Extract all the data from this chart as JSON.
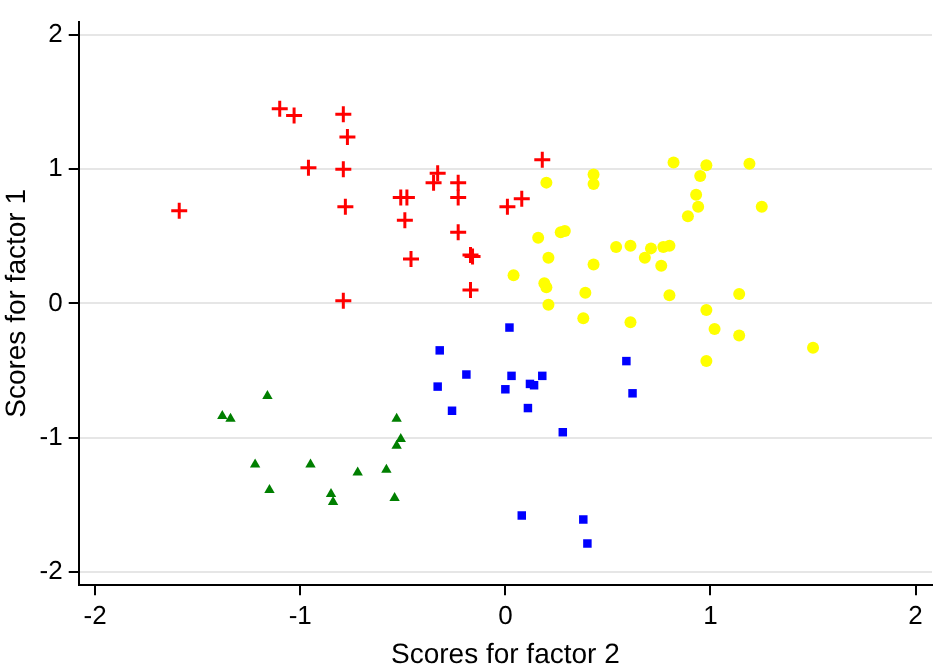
{
  "chart_data": {
    "type": "scatter",
    "xlabel": "Scores for factor 2",
    "ylabel": "Scores for factor 1",
    "xlim": [
      -2.08,
      2.08
    ],
    "ylim": [
      -2.1,
      2.1
    ],
    "xticks": [
      -2,
      -1,
      0,
      1,
      2
    ],
    "yticks": [
      -2,
      -1,
      0,
      1,
      2
    ],
    "grid": "y",
    "legend": false,
    "series": [
      {
        "color": "#ff0000",
        "marker": "cross",
        "x": [
          -1.1,
          -1.03,
          -0.79,
          -0.77,
          -0.96,
          -0.79,
          -0.78,
          -1.59,
          -0.79,
          -0.33,
          -0.35,
          -0.23,
          -0.51,
          -0.48,
          -0.23,
          -0.49,
          -0.23,
          -0.46,
          -0.17,
          -0.16,
          -0.17,
          0.18,
          0.08,
          0.01
        ],
        "values": [
          1.45,
          1.4,
          1.41,
          1.24,
          1.01,
          1.0,
          0.72,
          0.69,
          0.02,
          0.97,
          0.9,
          0.9,
          0.79,
          0.79,
          0.79,
          0.62,
          0.53,
          0.33,
          0.36,
          0.35,
          0.1,
          1.07,
          0.78,
          0.72
        ]
      },
      {
        "color": "#ffff00",
        "marker": "circle",
        "x": [
          0.2,
          0.43,
          0.43,
          0.82,
          0.98,
          1.19,
          0.95,
          0.93,
          0.94,
          1.25,
          0.89,
          0.16,
          0.27,
          0.29,
          0.54,
          0.61,
          0.71,
          0.77,
          0.8,
          0.68,
          0.21,
          0.43,
          0.76,
          0.04,
          0.19,
          0.2,
          0.21,
          0.39,
          0.8,
          1.14,
          0.38,
          0.61,
          0.98,
          1.02,
          1.14,
          1.5,
          0.98
        ],
        "values": [
          0.9,
          0.96,
          0.89,
          1.05,
          1.03,
          1.04,
          0.95,
          0.81,
          0.72,
          0.72,
          0.65,
          0.49,
          0.53,
          0.54,
          0.42,
          0.43,
          0.41,
          0.42,
          0.43,
          0.34,
          0.34,
          0.29,
          0.28,
          0.21,
          0.15,
          0.12,
          -0.01,
          0.08,
          0.06,
          0.07,
          -0.11,
          -0.14,
          -0.05,
          -0.19,
          -0.24,
          -0.33,
          -0.43
        ]
      },
      {
        "color": "#0000ff",
        "marker": "square",
        "x": [
          0.02,
          -0.32,
          -0.33,
          -0.19,
          -0.26,
          0.03,
          0.0,
          0.12,
          0.14,
          0.18,
          0.11,
          0.28,
          0.59,
          0.62,
          0.08,
          0.38,
          0.4
        ],
        "values": [
          -0.18,
          -0.35,
          -0.62,
          -0.53,
          -0.8,
          -0.54,
          -0.64,
          -0.6,
          -0.61,
          -0.54,
          -0.78,
          -0.96,
          -0.43,
          -0.67,
          -1.58,
          -1.61,
          -1.79
        ]
      },
      {
        "color": "#007f00",
        "marker": "triangle",
        "x": [
          -1.16,
          -1.38,
          -1.34,
          -0.53,
          -0.51,
          -0.53,
          -1.22,
          -0.95,
          -0.72,
          -0.58,
          -1.15,
          -0.85,
          -0.84,
          -0.54
        ],
        "values": [
          -0.69,
          -0.84,
          -0.86,
          -0.86,
          -1.01,
          -1.06,
          -1.2,
          -1.2,
          -1.26,
          -1.24,
          -1.39,
          -1.42,
          -1.48,
          -1.45
        ]
      }
    ]
  }
}
